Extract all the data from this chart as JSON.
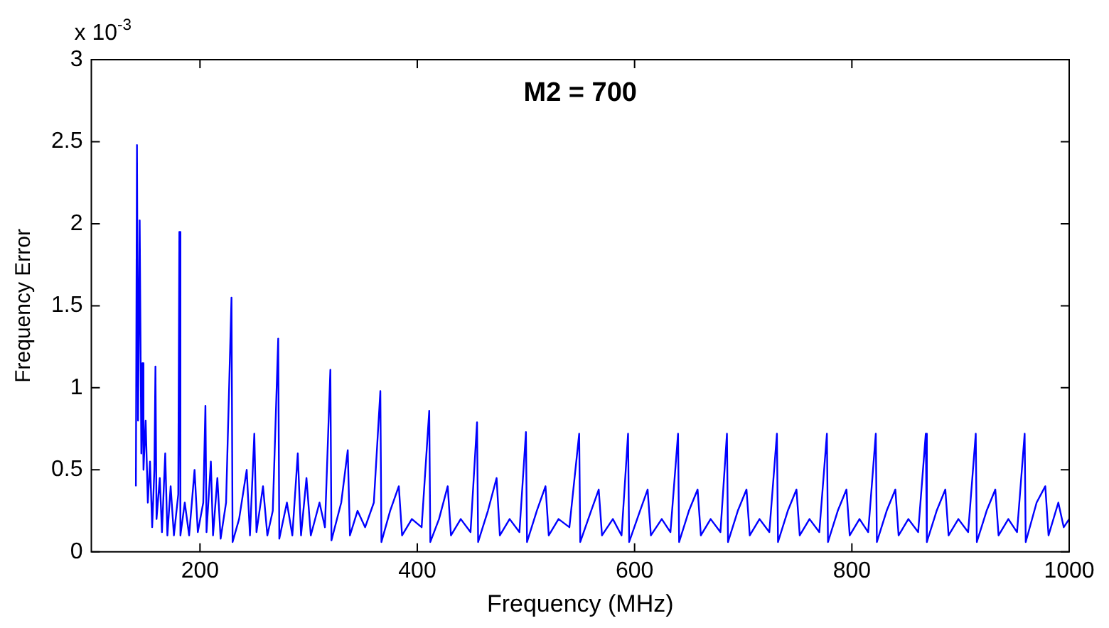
{
  "chart_data": {
    "type": "line",
    "title": "M2 = 700",
    "xlabel": "Frequency (MHz)",
    "ylabel": "Frequency Error",
    "annotations": [
      "x 10$^{-3}$"
    ],
    "xlim": [
      100,
      1000
    ],
    "xticks": [
      200,
      400,
      600,
      800,
      1000
    ],
    "ylim": [
      0,
      3
    ],
    "yticks": [
      0,
      0.5,
      1,
      1.5,
      2,
      2.5,
      3
    ],
    "marker": "none",
    "line_style": "solid",
    "series": [
      {
        "color": "#0000ff",
        "x": [
          141,
          142,
          143,
          144.5,
          146,
          147,
          148,
          150,
          152,
          154,
          156,
          158,
          159,
          160,
          163,
          165,
          168,
          170,
          173,
          176,
          180,
          181,
          182,
          186,
          190,
          195,
          198,
          203,
          205,
          206,
          210,
          212,
          216,
          219,
          224,
          229,
          230,
          236,
          243,
          246,
          250,
          252,
          258,
          262,
          267,
          272,
          273,
          280,
          285,
          290,
          293,
          298,
          302,
          310,
          315,
          320,
          321,
          330,
          336,
          338,
          345,
          352,
          360,
          366,
          367,
          375,
          383,
          386,
          395,
          404,
          411,
          412,
          420,
          428,
          431,
          440,
          449,
          455,
          456,
          465,
          473,
          476,
          485,
          494,
          500,
          501,
          510,
          518,
          521,
          530,
          540,
          549,
          550,
          560,
          567,
          570,
          580,
          588,
          594,
          595,
          605,
          612,
          615,
          625,
          633,
          640,
          641,
          650,
          658,
          661,
          670,
          679,
          685,
          686,
          695,
          703,
          706,
          715,
          724,
          731,
          732,
          741,
          749,
          752,
          761,
          770,
          777,
          778,
          787,
          795,
          798,
          807,
          815,
          822,
          823,
          832,
          840,
          843,
          852,
          861,
          868,
          869,
          878,
          886,
          889,
          898,
          907,
          914,
          915,
          924,
          932,
          935,
          944,
          952,
          959,
          960,
          970,
          978,
          981,
          990,
          995,
          1000
        ],
        "values": [
          0.4,
          2.48,
          0.8,
          2.02,
          0.6,
          1.15,
          0.5,
          0.8,
          0.3,
          0.55,
          0.15,
          0.5,
          1.13,
          0.2,
          0.45,
          0.12,
          0.6,
          0.1,
          0.4,
          0.1,
          0.35,
          1.95,
          0.1,
          0.3,
          0.1,
          0.5,
          0.12,
          0.3,
          0.89,
          0.12,
          0.55,
          0.1,
          0.45,
          0.08,
          0.3,
          1.55,
          0.06,
          0.2,
          0.5,
          0.1,
          0.72,
          0.12,
          0.4,
          0.1,
          0.25,
          1.3,
          0.08,
          0.3,
          0.1,
          0.6,
          0.1,
          0.45,
          0.1,
          0.3,
          0.15,
          1.11,
          0.07,
          0.3,
          0.62,
          0.1,
          0.25,
          0.15,
          0.3,
          0.98,
          0.06,
          0.25,
          0.4,
          0.1,
          0.2,
          0.15,
          0.86,
          0.06,
          0.2,
          0.4,
          0.1,
          0.2,
          0.12,
          0.79,
          0.06,
          0.25,
          0.45,
          0.1,
          0.2,
          0.12,
          0.73,
          0.06,
          0.25,
          0.4,
          0.1,
          0.2,
          0.15,
          0.72,
          0.06,
          0.25,
          0.38,
          0.1,
          0.2,
          0.1,
          0.72,
          0.06,
          0.25,
          0.38,
          0.1,
          0.2,
          0.12,
          0.72,
          0.06,
          0.25,
          0.38,
          0.1,
          0.2,
          0.12,
          0.72,
          0.06,
          0.25,
          0.38,
          0.1,
          0.2,
          0.12,
          0.72,
          0.06,
          0.25,
          0.38,
          0.1,
          0.2,
          0.12,
          0.72,
          0.06,
          0.25,
          0.38,
          0.1,
          0.2,
          0.12,
          0.72,
          0.06,
          0.25,
          0.38,
          0.1,
          0.2,
          0.12,
          0.72,
          0.06,
          0.25,
          0.38,
          0.1,
          0.2,
          0.12,
          0.72,
          0.06,
          0.25,
          0.38,
          0.1,
          0.2,
          0.12,
          0.72,
          0.06,
          0.3,
          0.4,
          0.1,
          0.3,
          0.15,
          0.2
        ]
      }
    ]
  }
}
